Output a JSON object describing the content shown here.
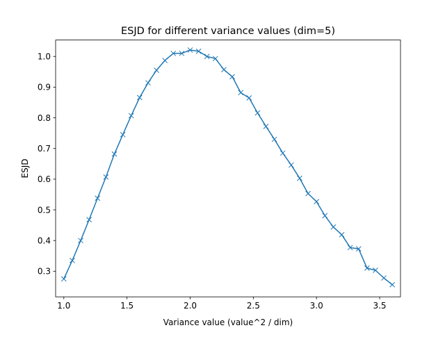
{
  "chart_data": {
    "type": "line",
    "title": "ESJD for different variance values (dim=5)",
    "xlabel": "Variance value (value^2 / dim)",
    "ylabel": "ESJD",
    "xlim": [
      0.935,
      3.665
    ],
    "ylim": [
      0.2165,
      1.0535
    ],
    "xticks": [
      1.0,
      1.5,
      2.0,
      2.5,
      3.0,
      3.5
    ],
    "xtick_labels": [
      "1.0",
      "1.5",
      "2.0",
      "2.5",
      "3.0",
      "3.5"
    ],
    "yticks": [
      0.3,
      0.4,
      0.5,
      0.6,
      0.7,
      0.8,
      0.9,
      1.0
    ],
    "ytick_labels": [
      "0.3",
      "0.4",
      "0.5",
      "0.6",
      "0.7",
      "0.8",
      "0.9",
      "1.0"
    ],
    "grid": false,
    "marker": "x",
    "series": [
      {
        "color": "#1f77b4",
        "x": [
          1.0,
          1.0667,
          1.1333,
          1.2,
          1.2667,
          1.3333,
          1.4,
          1.4667,
          1.5333,
          1.6,
          1.6667,
          1.7333,
          1.8,
          1.8667,
          1.9333,
          2.0,
          2.0667,
          2.1333,
          2.2,
          2.2667,
          2.3333,
          2.4,
          2.4667,
          2.5333,
          2.6,
          2.6667,
          2.7333,
          2.8,
          2.8667,
          2.9333,
          3.0,
          3.0667,
          3.1333,
          3.2,
          3.2667,
          3.3333,
          3.4,
          3.4667,
          3.5333,
          3.6
        ],
        "y": [
          0.275,
          0.335,
          0.4,
          0.468,
          0.538,
          0.607,
          0.682,
          0.745,
          0.807,
          0.866,
          0.914,
          0.955,
          0.987,
          1.01,
          1.01,
          1.021,
          1.017,
          1.0,
          0.993,
          0.957,
          0.934,
          0.882,
          0.865,
          0.816,
          0.772,
          0.73,
          0.685,
          0.646,
          0.603,
          0.553,
          0.527,
          0.481,
          0.444,
          0.419,
          0.377,
          0.373,
          0.31,
          0.303,
          0.278,
          0.256
        ]
      }
    ]
  }
}
